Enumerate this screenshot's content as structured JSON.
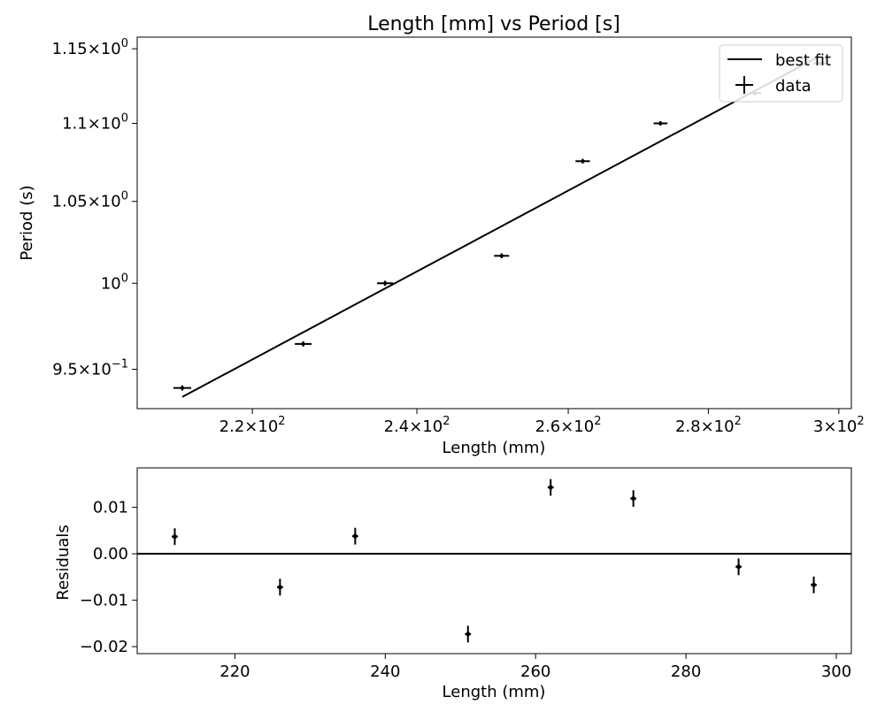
{
  "chart_data": [
    {
      "type": "scatter",
      "title": "Length [mm] vs Period [s]",
      "xlabel": "Length (mm)",
      "ylabel": "Period (s)",
      "xscale": "log",
      "yscale": "log",
      "xlim": [
        207,
        302
      ],
      "ylim": [
        0.928,
        1.158
      ],
      "xticks": [
        {
          "value": 220,
          "mant": "2.2",
          "exp": "2"
        },
        {
          "value": 240,
          "mant": "2.4",
          "exp": "2"
        },
        {
          "value": 260,
          "mant": "2.6",
          "exp": "2"
        },
        {
          "value": 280,
          "mant": "2.8",
          "exp": "2"
        },
        {
          "value": 300,
          "mant": "3",
          "exp": "2"
        }
      ],
      "yticks": [
        {
          "value": 0.95,
          "mant": "9.5",
          "exp": "−1"
        },
        {
          "value": 1.0,
          "mant": "",
          "exp": "0"
        },
        {
          "value": 1.05,
          "mant": "1.05",
          "exp": "0"
        },
        {
          "value": 1.1,
          "mant": "1.1",
          "exp": "0"
        },
        {
          "value": 1.15,
          "mant": "1.15",
          "exp": "0"
        }
      ],
      "tick_base": "10",
      "times_sign": "×",
      "legend": {
        "placement": "top-right",
        "entries": [
          "best fit",
          "data"
        ]
      },
      "series": [
        {
          "name": "data",
          "x": [
            212,
            226,
            236,
            251,
            262,
            273,
            287,
            297
          ],
          "y": [
            0.9395,
            0.9645,
            1.0,
            1.0165,
            1.0755,
            1.1,
            1.12,
            1.14
          ],
          "xerr": 1,
          "yerr": 0.0015,
          "color": "#000000"
        },
        {
          "name": "best fit",
          "x": [
            212,
            297
          ],
          "y": [
            0.9345,
            1.145
          ],
          "color": "#000000"
        }
      ],
      "grid": false
    },
    {
      "type": "scatter",
      "xlabel": "Length (mm)",
      "ylabel": "Residuals",
      "xlim": [
        207,
        302
      ],
      "ylim": [
        -0.0215,
        0.0185
      ],
      "xticks": [
        220,
        240,
        260,
        280,
        300
      ],
      "yticks": [
        {
          "value": 0.01,
          "label": "0.01"
        },
        {
          "value": 0.0,
          "label": "0.00"
        },
        {
          "value": -0.01,
          "label": "−0.01"
        },
        {
          "value": -0.02,
          "label": "−0.02"
        }
      ],
      "zero_line": 0,
      "series": [
        {
          "x": [
            212,
            226,
            236,
            251,
            262,
            273,
            287,
            297
          ],
          "y": [
            0.0037,
            -0.0072,
            0.0038,
            -0.0173,
            0.0143,
            0.0119,
            -0.0028,
            -0.0067
          ],
          "yerr": 0.0018,
          "xerr": 0.4,
          "color": "#000000"
        }
      ],
      "grid": false
    }
  ]
}
